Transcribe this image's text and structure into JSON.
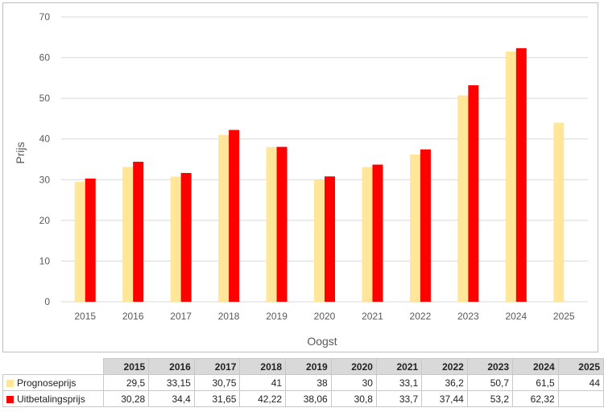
{
  "chart_data": {
    "type": "bar",
    "categories": [
      "2015",
      "2016",
      "2017",
      "2018",
      "2019",
      "2020",
      "2021",
      "2022",
      "2023",
      "2024",
      "2025"
    ],
    "series": [
      {
        "name": "Prognoseprijs",
        "color": "#ffe699",
        "values": [
          29.5,
          33.15,
          30.75,
          41,
          38,
          30,
          33.1,
          36.2,
          50.7,
          61.5,
          44
        ]
      },
      {
        "name": "Uitbetalingsprijs",
        "color": "#ff0000",
        "values": [
          30.28,
          34.4,
          31.65,
          42.22,
          38.06,
          30.8,
          33.7,
          37.44,
          53.2,
          62.32,
          null
        ]
      }
    ],
    "title": "",
    "xlabel": "Oogst",
    "ylabel": "Prijs",
    "ylim": [
      0,
      70
    ],
    "yticks": [
      0,
      10,
      20,
      30,
      40,
      50,
      60,
      70
    ],
    "grid": true,
    "legend": "data table below chart"
  },
  "table": {
    "headers": [
      "2015",
      "2016",
      "2017",
      "2018",
      "2019",
      "2020",
      "2021",
      "2022",
      "2023",
      "2024",
      "2025"
    ],
    "rows": [
      {
        "label": "Prognoseprijs",
        "cells": [
          "29,5",
          "33,15",
          "30,75",
          "41",
          "38",
          "30",
          "33,1",
          "36,2",
          "50,7",
          "61,5",
          "44"
        ]
      },
      {
        "label": "Uitbetalingsprijs",
        "cells": [
          "30,28",
          "34,4",
          "31,65",
          "42,22",
          "38,06",
          "30,8",
          "33,7",
          "37,44",
          "53,2",
          "62,32",
          ""
        ]
      }
    ]
  }
}
